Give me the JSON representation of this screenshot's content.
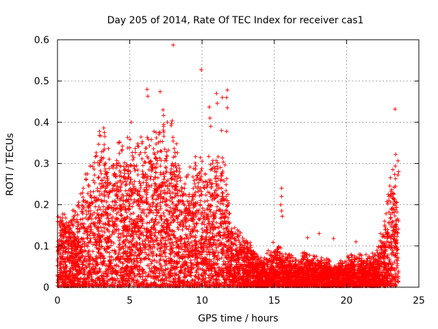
{
  "chart_data": {
    "type": "scatter",
    "title": "Day 205 of 2014, Rate Of TEC Index for receiver cas1",
    "xlabel": "GPS time / hours",
    "ylabel": "ROTI / TECUs",
    "xlim": [
      0,
      25
    ],
    "ylim": [
      0,
      0.6
    ],
    "xticks": [
      0,
      5,
      10,
      15,
      20,
      25
    ],
    "xtick_labels": [
      "0",
      "5",
      "10",
      "15",
      "20",
      "25"
    ],
    "yticks": [
      0,
      0.1,
      0.2,
      0.3,
      0.4,
      0.5,
      0.6
    ],
    "ytick_labels": [
      "0",
      "0.1",
      "0.2",
      "0.3",
      "0.4",
      "0.5",
      "0.6"
    ],
    "grid": true,
    "marker": "+",
    "color": "#ff0000",
    "series": [
      {
        "name": "ROTI",
        "envelope": {
          "description": "Dense scatter of ROTI values; approximate upper envelope (hour, TECU) and band of dense points",
          "hours": [
            0,
            0.5,
            1,
            1.5,
            2,
            2.5,
            3,
            3.5,
            4,
            4.5,
            5,
            5.5,
            6,
            6.5,
            7,
            7.5,
            8,
            8.5,
            9,
            9.5,
            10,
            10.5,
            11,
            11.5,
            12,
            12.5,
            13,
            13.5,
            14,
            14.5,
            15,
            15.5,
            16,
            16.5,
            17,
            17.5,
            18,
            18.5,
            19,
            19.5,
            20,
            20.5,
            21,
            21.5,
            22,
            22.5,
            23,
            23.5
          ],
          "typical_max": [
            0.17,
            0.15,
            0.15,
            0.18,
            0.25,
            0.26,
            0.33,
            0.3,
            0.29,
            0.33,
            0.31,
            0.3,
            0.33,
            0.33,
            0.35,
            0.34,
            0.33,
            0.26,
            0.25,
            0.27,
            0.29,
            0.26,
            0.3,
            0.29,
            0.14,
            0.13,
            0.1,
            0.09,
            0.07,
            0.07,
            0.1,
            0.08,
            0.07,
            0.06,
            0.07,
            0.07,
            0.07,
            0.06,
            0.05,
            0.05,
            0.06,
            0.07,
            0.07,
            0.07,
            0.07,
            0.12,
            0.22,
            0.27
          ]
        },
        "outliers": [
          {
            "x": 8.0,
            "y": 0.587
          },
          {
            "x": 9.95,
            "y": 0.527
          },
          {
            "x": 6.2,
            "y": 0.48
          },
          {
            "x": 6.25,
            "y": 0.463
          },
          {
            "x": 7.1,
            "y": 0.474
          },
          {
            "x": 11.0,
            "y": 0.47
          },
          {
            "x": 11.75,
            "y": 0.478
          },
          {
            "x": 11.7,
            "y": 0.46
          },
          {
            "x": 11.4,
            "y": 0.46
          },
          {
            "x": 10.5,
            "y": 0.437
          },
          {
            "x": 11.05,
            "y": 0.446
          },
          {
            "x": 11.75,
            "y": 0.435
          },
          {
            "x": 10.55,
            "y": 0.41
          },
          {
            "x": 11.35,
            "y": 0.38
          },
          {
            "x": 11.7,
            "y": 0.378
          },
          {
            "x": 5.1,
            "y": 0.4
          },
          {
            "x": 7.3,
            "y": 0.43
          },
          {
            "x": 7.6,
            "y": 0.4
          },
          {
            "x": 3.2,
            "y": 0.386
          },
          {
            "x": 3.25,
            "y": 0.375
          },
          {
            "x": 4.2,
            "y": 0.35
          },
          {
            "x": 10.6,
            "y": 0.39
          },
          {
            "x": 15.5,
            "y": 0.24
          },
          {
            "x": 15.5,
            "y": 0.22
          },
          {
            "x": 15.45,
            "y": 0.2
          },
          {
            "x": 15.5,
            "y": 0.185
          },
          {
            "x": 15.55,
            "y": 0.172
          },
          {
            "x": 18.1,
            "y": 0.13
          },
          {
            "x": 19.1,
            "y": 0.118
          },
          {
            "x": 23.35,
            "y": 0.432
          },
          {
            "x": 23.4,
            "y": 0.322
          },
          {
            "x": 23.2,
            "y": 0.285
          },
          {
            "x": 23.6,
            "y": 0.28
          },
          {
            "x": 22.35,
            "y": 0.13
          },
          {
            "x": 20.65,
            "y": 0.11
          },
          {
            "x": 17.3,
            "y": 0.12
          }
        ]
      }
    ]
  }
}
